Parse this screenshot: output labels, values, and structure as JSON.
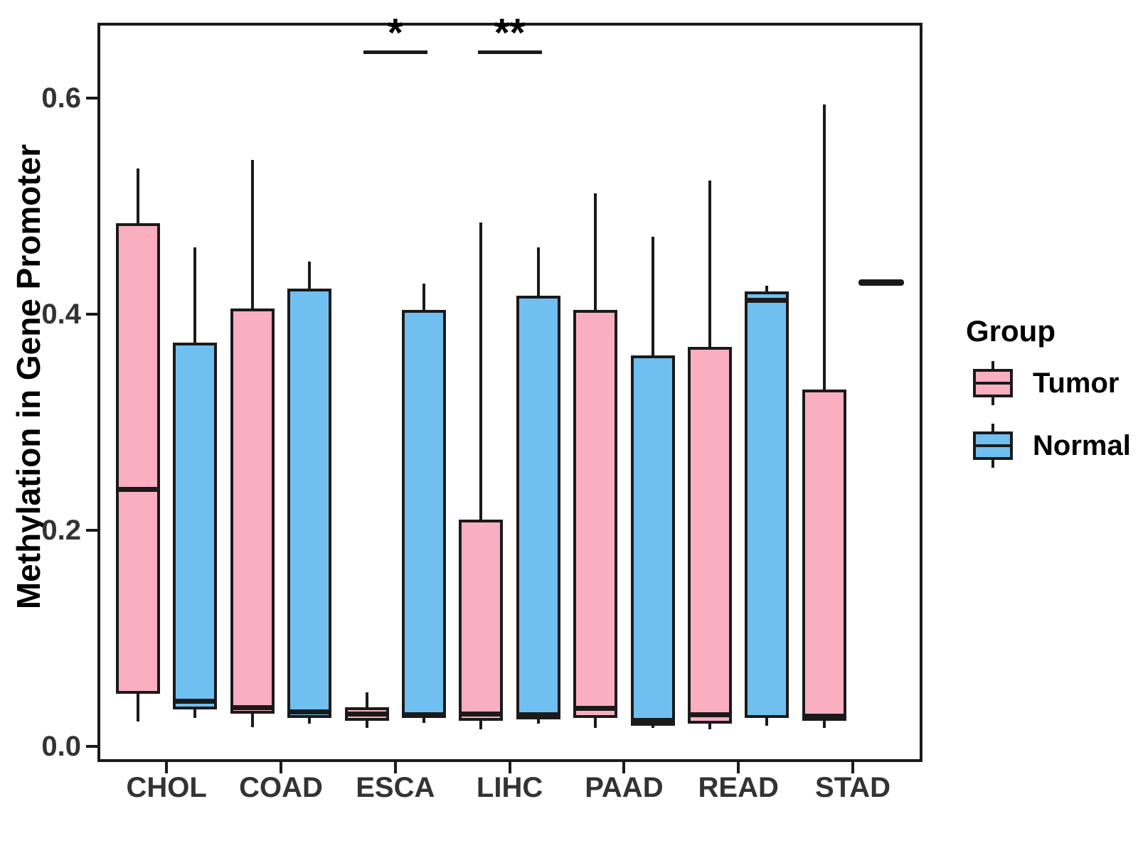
{
  "figure": {
    "background": "#FFFFFF",
    "ink_color": "#1a1a1a",
    "axis_text_color": "#333333"
  },
  "y_axis": {
    "title": "Methylation in Gene Promoter"
  },
  "legend": {
    "title": "Group",
    "items": [
      {
        "label": "Tumor",
        "color": "#FAAFC1"
      },
      {
        "label": "Normal",
        "color": "#70BFF1"
      }
    ]
  },
  "chart_data": {
    "type": "boxplot",
    "title": "",
    "xlabel": "",
    "ylabel": "Methylation in Gene Promoter",
    "ylim": [
      -0.015,
      0.67
    ],
    "yticks": [
      0.0,
      0.2,
      0.4,
      0.6
    ],
    "ytick_labels": [
      "0.0",
      "0.2",
      "0.4",
      "0.6"
    ],
    "grid": false,
    "legend_position": "right",
    "categories": [
      "CHOL",
      "COAD",
      "ESCA",
      "LIHC",
      "PAAD",
      "READ",
      "STAD"
    ],
    "groups": [
      "Tumor",
      "Normal"
    ],
    "group_colors": {
      "Tumor": "#FAAFC1",
      "Normal": "#70BFF1"
    },
    "series": [
      {
        "name": "Tumor",
        "boxes": [
          {
            "category": "CHOL",
            "whisker_low": 0.023,
            "q1": 0.049,
            "median": 0.238,
            "q3": 0.484,
            "whisker_high": 0.535
          },
          {
            "category": "COAD",
            "whisker_low": 0.018,
            "q1": 0.03,
            "median": 0.036,
            "q3": 0.405,
            "whisker_high": 0.543
          },
          {
            "category": "ESCA",
            "whisker_low": 0.017,
            "q1": 0.024,
            "median": 0.03,
            "q3": 0.036,
            "whisker_high": 0.05
          },
          {
            "category": "LIHC",
            "whisker_low": 0.016,
            "q1": 0.024,
            "median": 0.03,
            "q3": 0.21,
            "whisker_high": 0.485
          },
          {
            "category": "PAAD",
            "whisker_low": 0.017,
            "q1": 0.026,
            "median": 0.035,
            "q3": 0.404,
            "whisker_high": 0.512
          },
          {
            "category": "READ",
            "whisker_low": 0.016,
            "q1": 0.021,
            "median": 0.029,
            "q3": 0.37,
            "whisker_high": 0.524
          },
          {
            "category": "STAD",
            "whisker_low": 0.017,
            "q1": 0.024,
            "median": 0.028,
            "q3": 0.33,
            "whisker_high": 0.594
          }
        ]
      },
      {
        "name": "Normal",
        "boxes": [
          {
            "category": "CHOL",
            "whisker_low": 0.026,
            "q1": 0.034,
            "median": 0.042,
            "q3": 0.374,
            "whisker_high": 0.462
          },
          {
            "category": "COAD",
            "whisker_low": 0.021,
            "q1": 0.026,
            "median": 0.032,
            "q3": 0.424,
            "whisker_high": 0.449
          },
          {
            "category": "ESCA",
            "whisker_low": 0.022,
            "q1": 0.026,
            "median": 0.029,
            "q3": 0.404,
            "whisker_high": 0.428
          },
          {
            "category": "LIHC",
            "whisker_low": 0.021,
            "q1": 0.025,
            "median": 0.029,
            "q3": 0.417,
            "whisker_high": 0.462
          },
          {
            "category": "PAAD",
            "whisker_low": 0.017,
            "q1": 0.019,
            "median": 0.024,
            "q3": 0.362,
            "whisker_high": 0.472
          },
          {
            "category": "READ",
            "whisker_low": 0.019,
            "q1": 0.026,
            "median": 0.413,
            "q3": 0.421,
            "whisker_high": 0.426
          },
          {
            "category": "STAD",
            "single_value": 0.429
          }
        ]
      }
    ],
    "annotations": [
      {
        "category": "ESCA",
        "label": "*"
      },
      {
        "category": "LIHC",
        "label": "**"
      }
    ]
  }
}
